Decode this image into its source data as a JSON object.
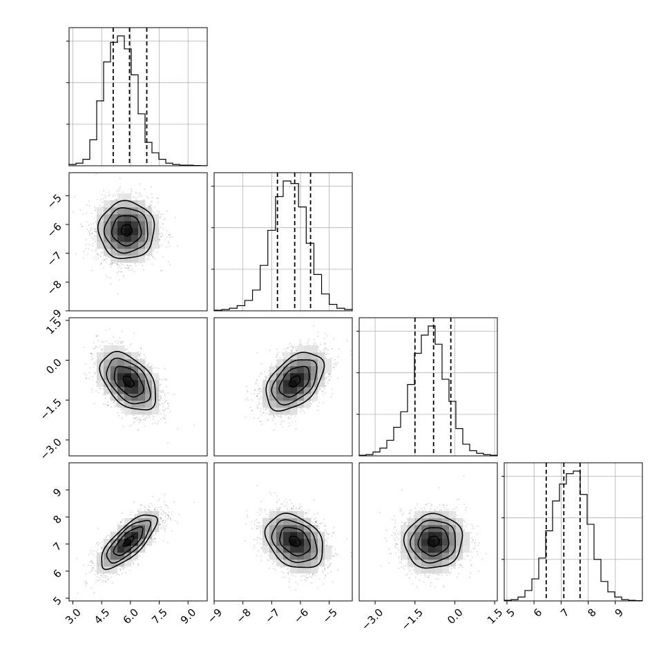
{
  "chart_data": {
    "type": "corner",
    "title": "",
    "quantiles": [
      0.16,
      0.5,
      0.84
    ],
    "grid": true,
    "colors": {
      "line": "#000000",
      "grid": "#b0b0b0",
      "points": "#000000"
    },
    "parameters": [
      {
        "name": "",
        "range": [
          2.8,
          10.0
        ],
        "ticks": [
          3.0,
          4.5,
          6.0,
          7.5,
          9.0
        ],
        "tick_labels": [
          "3.0",
          "4.5",
          "6.0",
          "7.5",
          "9.0"
        ],
        "quantile_values": [
          5.1,
          5.95,
          6.85
        ],
        "hist_counts": [
          1,
          2,
          5,
          20,
          50,
          80,
          95,
          100,
          90,
          70,
          40,
          18,
          10,
          5,
          2,
          1,
          0.5,
          0.5,
          0.2,
          0.1
        ]
      },
      {
        "name": "",
        "range": [
          -9.0,
          -4.2
        ],
        "ticks": [
          -9,
          -8,
          -7,
          -6,
          -5
        ],
        "tick_labels": [
          "−9",
          "−8",
          "−7",
          "−6",
          "−5"
        ],
        "quantile_values": [
          -6.8,
          -6.2,
          -5.65
        ],
        "hist_counts": [
          0.5,
          1,
          2,
          4,
          8,
          16,
          35,
          62,
          88,
          100,
          98,
          80,
          52,
          28,
          13,
          5,
          2,
          1
        ]
      },
      {
        "name": "",
        "range": [
          -3.6,
          1.6
        ],
        "ticks": [
          -3.0,
          -1.5,
          0.0,
          1.5
        ],
        "tick_labels": [
          "−3.0",
          "−1.5",
          "0.0",
          "1.5"
        ],
        "quantile_values": [
          -1.5,
          -0.8,
          -0.15
        ],
        "hist_counts": [
          0.5,
          1,
          3,
          6,
          12,
          22,
          34,
          55,
          79,
          93,
          100,
          86,
          59,
          42,
          21,
          9,
          4,
          2,
          1,
          0.5
        ]
      },
      {
        "name": "",
        "range": [
          4.9,
          10.0
        ],
        "ticks": [
          5,
          6,
          7,
          8,
          9
        ],
        "tick_labels": [
          "5",
          "6",
          "7",
          "8",
          "9"
        ],
        "quantile_values": [
          6.45,
          7.1,
          7.7
        ],
        "hist_counts": [
          0.5,
          1,
          3,
          8,
          17,
          33,
          54,
          77,
          90,
          98,
          100,
          82,
          59,
          32,
          15,
          7,
          3,
          1,
          0.5,
          0.2
        ]
      }
    ],
    "pairs": [
      {
        "row": 1,
        "col": 0,
        "mean": [
          5.8,
          -6.2
        ],
        "std": [
          0.8,
          0.55
        ],
        "corr": 0.0
      },
      {
        "row": 2,
        "col": 0,
        "mean": [
          5.9,
          -0.8
        ],
        "std": [
          0.8,
          0.6
        ],
        "corr": -0.45
      },
      {
        "row": 2,
        "col": 1,
        "mean": [
          -6.2,
          -0.8
        ],
        "std": [
          0.55,
          0.6
        ],
        "corr": 0.45
      },
      {
        "row": 3,
        "col": 0,
        "mean": [
          5.9,
          7.1
        ],
        "std": [
          0.8,
          0.55
        ],
        "corr": 0.75
      },
      {
        "row": 3,
        "col": 1,
        "mean": [
          -6.2,
          7.1
        ],
        "std": [
          0.55,
          0.55
        ],
        "corr": -0.3
      },
      {
        "row": 3,
        "col": 2,
        "mean": [
          -0.8,
          7.1
        ],
        "std": [
          0.6,
          0.55
        ],
        "corr": 0.05
      }
    ]
  }
}
